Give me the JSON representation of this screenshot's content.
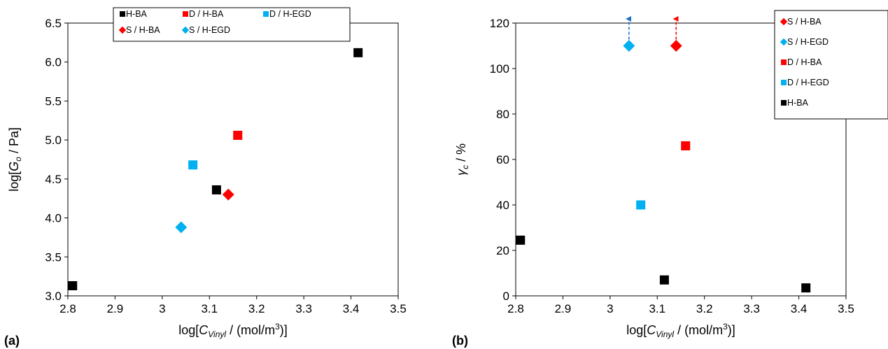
{
  "chart_data": [
    {
      "type": "scatter",
      "panel_label": "(a)",
      "ylabel": {
        "pre": "log[",
        "var": "G",
        "sub": "o",
        "post": " / Pa]"
      },
      "xlabel": {
        "pre": "log[",
        "var": "C",
        "sub": "Vinyl",
        "post": " / (mol/m",
        "sup": "3",
        "end": ")]"
      },
      "xlim": [
        2.8,
        3.5
      ],
      "ylim": [
        3.0,
        6.5
      ],
      "xticks": [
        "2.8",
        "2.9",
        "3",
        "3.1",
        "3.2",
        "3.3",
        "3.4",
        "3.5"
      ],
      "yticks": [
        "3.0",
        "3.5",
        "4.0",
        "4.5",
        "5.0",
        "5.5",
        "6.0",
        "6.5"
      ],
      "grid": false,
      "legend_position": "top",
      "legend": [
        "H-BA",
        "D / H-BA",
        "D / H-EGD",
        "S / H-BA",
        "S / H-EGD"
      ],
      "series": [
        {
          "name": "H-BA",
          "marker": "square",
          "color": "#000000",
          "points": [
            {
              "x": 2.81,
              "y": 3.13
            },
            {
              "x": 3.115,
              "y": 4.36
            },
            {
              "x": 3.415,
              "y": 6.12
            }
          ]
        },
        {
          "name": "D / H-BA",
          "marker": "square",
          "color": "#ff0000",
          "points": [
            {
              "x": 3.16,
              "y": 5.06
            }
          ]
        },
        {
          "name": "D / H-EGD",
          "marker": "square",
          "color": "#00b0f0",
          "points": [
            {
              "x": 3.065,
              "y": 4.68
            }
          ]
        },
        {
          "name": "S / H-BA",
          "marker": "diamond",
          "color": "#ff0000",
          "points": [
            {
              "x": 3.14,
              "y": 4.3
            }
          ]
        },
        {
          "name": "S / H-EGD",
          "marker": "diamond",
          "color": "#00b0f0",
          "points": [
            {
              "x": 3.04,
              "y": 3.88
            }
          ]
        }
      ]
    },
    {
      "type": "scatter",
      "panel_label": "(b)",
      "ylabel": {
        "var": "γ",
        "sub": "c",
        "post": " / %"
      },
      "xlabel": {
        "pre": "log[",
        "var": "C",
        "sub": "Vinyl",
        "post": " / (mol/m",
        "sup": "3",
        "end": ")]"
      },
      "xlim": [
        2.8,
        3.5
      ],
      "ylim": [
        0,
        120
      ],
      "xticks": [
        "2.8",
        "2.9",
        "3",
        "3.1",
        "3.2",
        "3.3",
        "3.4",
        "3.5"
      ],
      "yticks": [
        "0",
        "20",
        "40",
        "60",
        "80",
        "100",
        "120"
      ],
      "grid": false,
      "legend_position": "top-right",
      "legend": [
        "S / H-BA",
        "S / H-EGD",
        "D / H-BA",
        "D / H-EGD",
        "H-BA"
      ],
      "series": [
        {
          "name": "S / H-BA",
          "marker": "diamond",
          "color": "#ff0000",
          "points": [
            {
              "x": 3.14,
              "y": 110
            }
          ],
          "arrow_up": true
        },
        {
          "name": "S / H-EGD",
          "marker": "diamond",
          "color": "#00b0f0",
          "points": [
            {
              "x": 3.04,
              "y": 110
            }
          ],
          "arrow_up": true
        },
        {
          "name": "D / H-BA",
          "marker": "square",
          "color": "#ff0000",
          "points": [
            {
              "x": 3.16,
              "y": 66
            }
          ]
        },
        {
          "name": "D / H-EGD",
          "marker": "square",
          "color": "#00b0f0",
          "points": [
            {
              "x": 3.065,
              "y": 40
            }
          ]
        },
        {
          "name": "H-BA",
          "marker": "square",
          "color": "#000000",
          "points": [
            {
              "x": 2.81,
              "y": 24.5
            },
            {
              "x": 3.115,
              "y": 7
            },
            {
              "x": 3.415,
              "y": 3.5
            }
          ]
        }
      ]
    }
  ]
}
